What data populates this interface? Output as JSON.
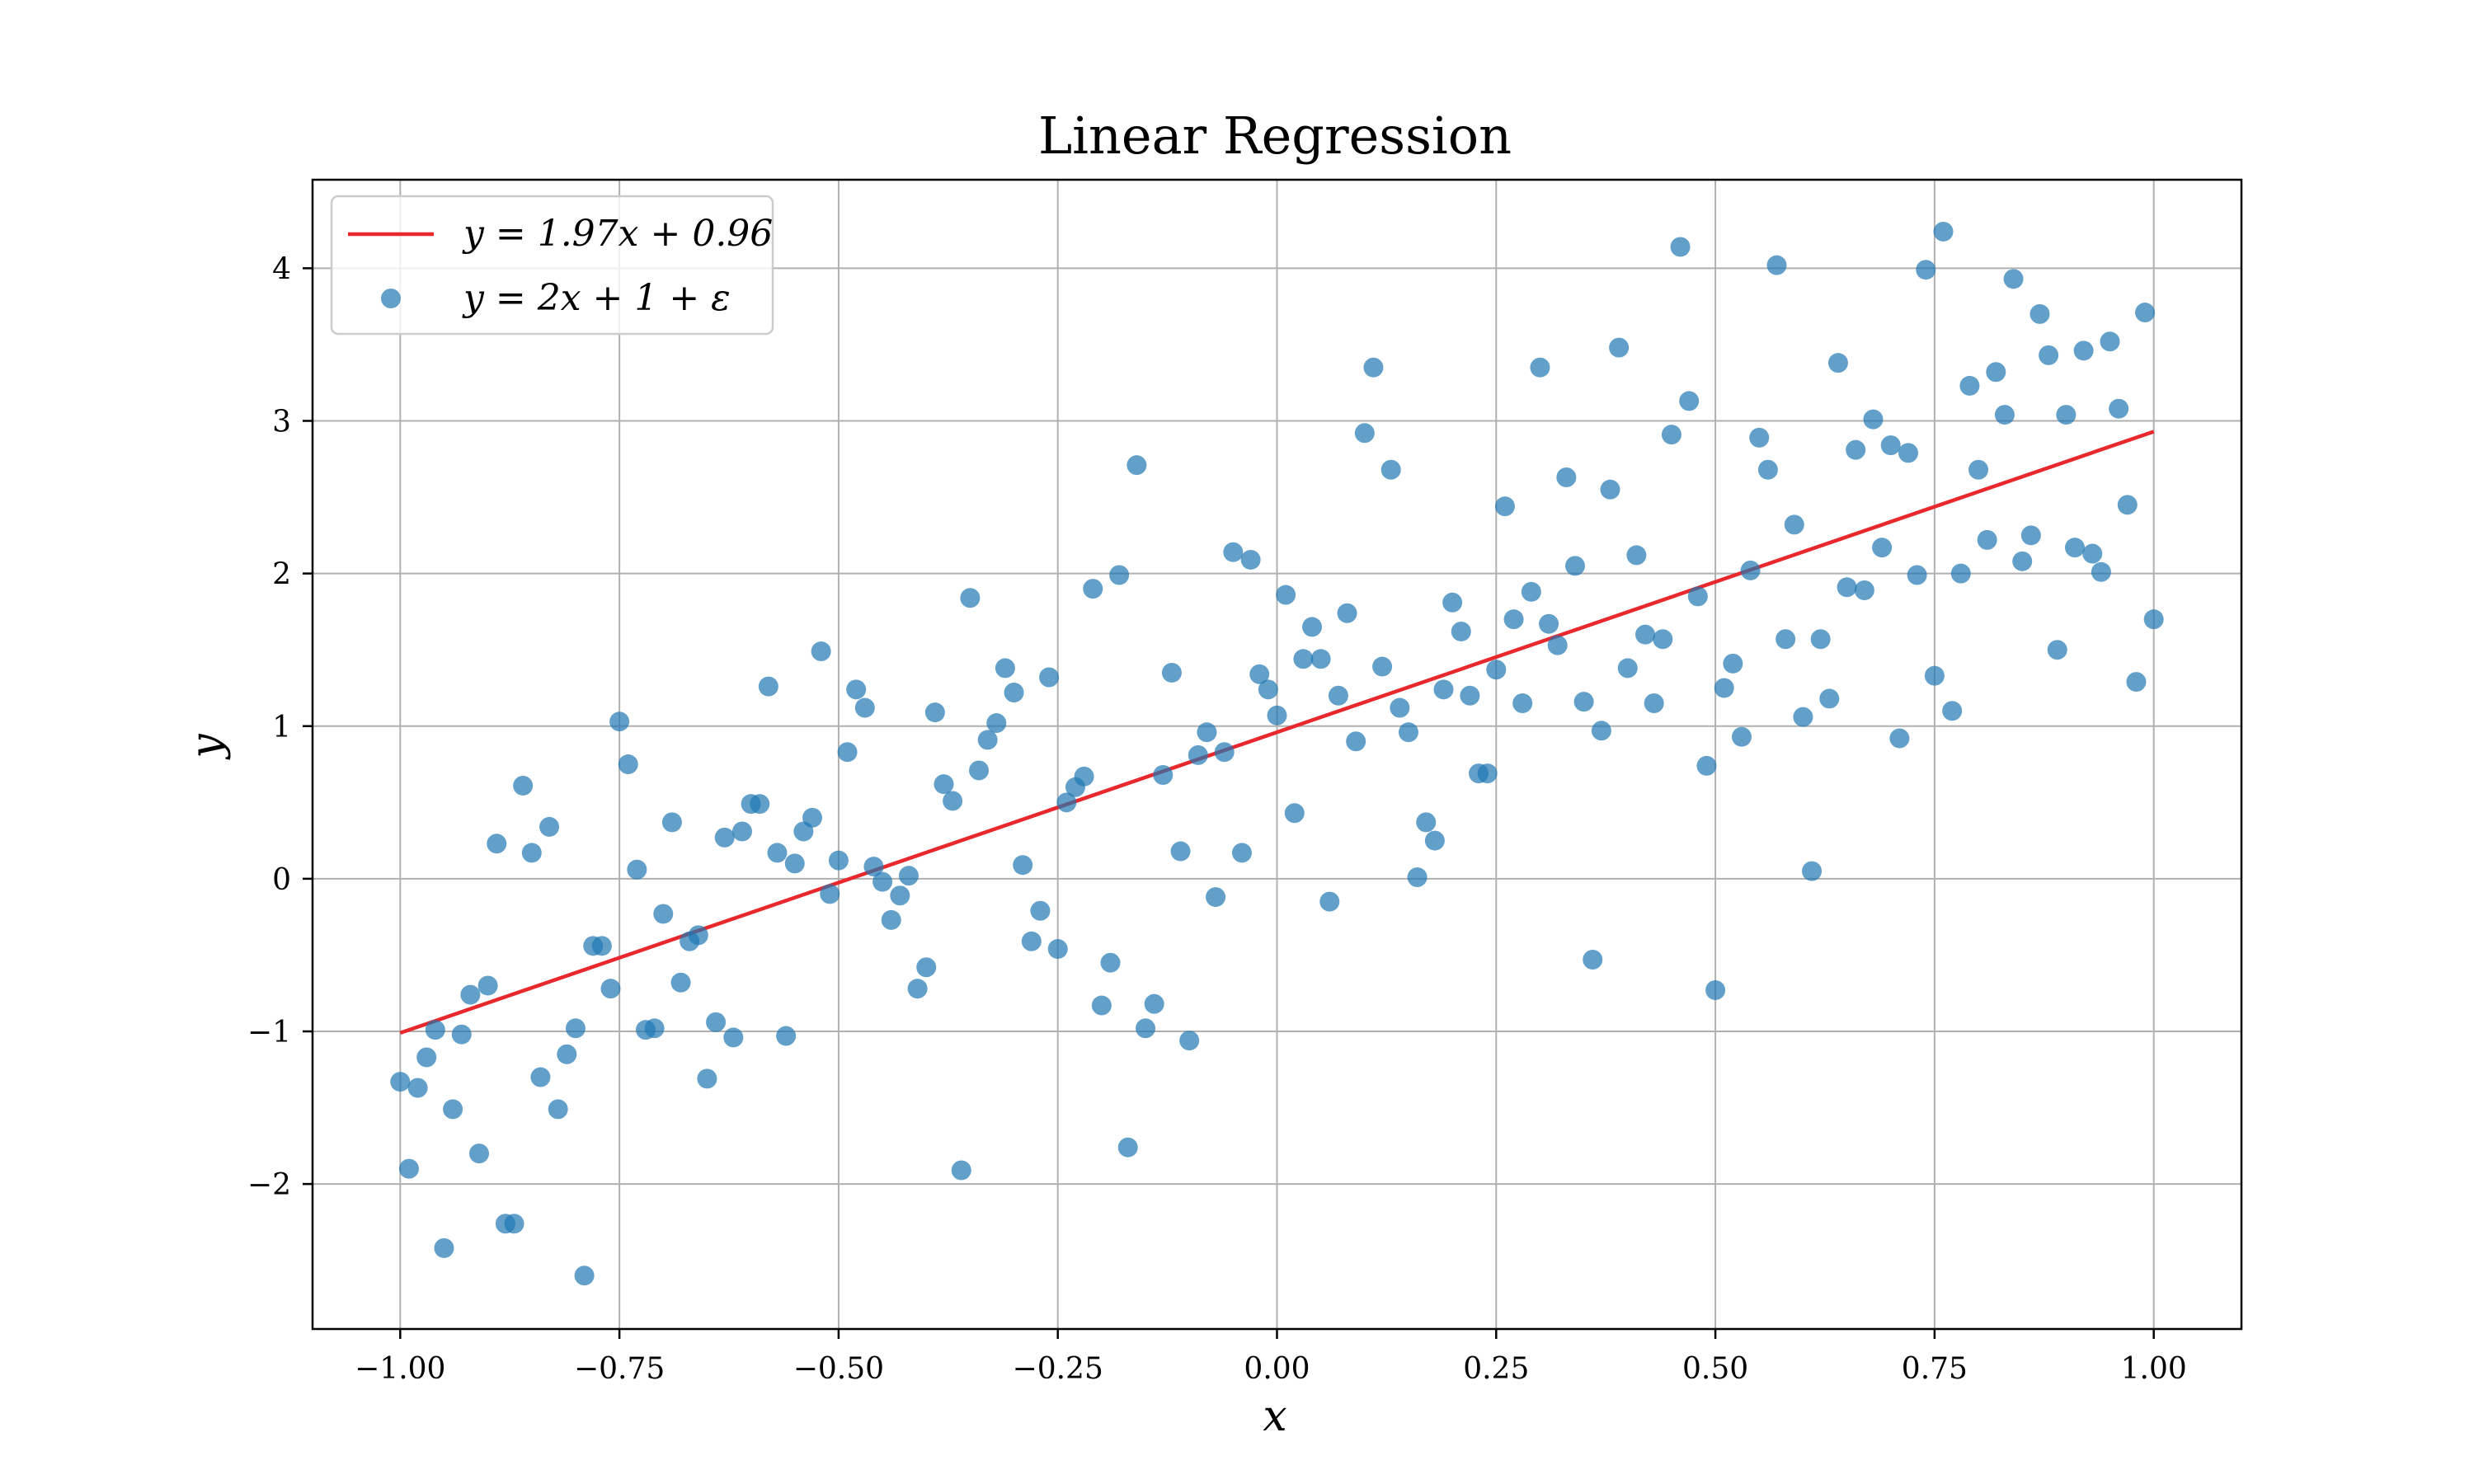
{
  "colors": {
    "point": "#1f77b4",
    "line": "#e8282d",
    "grid": "#b0b0b0",
    "frame": "#000000",
    "background": "#ffffff"
  },
  "chart_data": {
    "type": "scatter",
    "title": "Linear Regression",
    "xlabel": "x",
    "ylabel": "y",
    "xlim": [
      -1.1,
      1.1
    ],
    "ylim": [
      -2.95,
      4.58
    ],
    "grid": true,
    "legend_position": "top-left",
    "x_ticks": [
      -1.0,
      -0.75,
      -0.5,
      -0.25,
      0.0,
      0.25,
      0.5,
      0.75,
      1.0
    ],
    "x_tick_labels": [
      "−1.00",
      "−0.75",
      "−0.50",
      "−0.25",
      "0.00",
      "0.25",
      "0.50",
      "0.75",
      "1.00"
    ],
    "y_ticks": [
      -2,
      -1,
      0,
      1,
      2,
      3,
      4
    ],
    "y_tick_labels": [
      "−2",
      "−1",
      "0",
      "1",
      "2",
      "3",
      "4"
    ],
    "series": [
      {
        "name": "y = 1.97x + 0.96",
        "kind": "line",
        "x": [
          -1.0,
          1.0
        ],
        "y": [
          -1.01,
          2.93
        ]
      },
      {
        "name": "y = 2x + 1 + ε",
        "kind": "scatter",
        "points": [
          [
            -1.0,
            -1.33
          ],
          [
            -0.99,
            -1.9
          ],
          [
            -0.98,
            -1.37
          ],
          [
            -0.97,
            -1.17
          ],
          [
            -0.96,
            -0.99
          ],
          [
            -0.95,
            -2.42
          ],
          [
            -0.94,
            -1.51
          ],
          [
            -0.93,
            -1.02
          ],
          [
            -0.92,
            -0.76
          ],
          [
            -0.91,
            -1.8
          ],
          [
            -0.9,
            -0.7
          ],
          [
            -0.89,
            0.23
          ],
          [
            -0.88,
            -2.26
          ],
          [
            -0.87,
            -2.26
          ],
          [
            -0.86,
            0.61
          ],
          [
            -0.85,
            0.17
          ],
          [
            -0.84,
            -1.3
          ],
          [
            -0.83,
            0.34
          ],
          [
            -0.82,
            -1.51
          ],
          [
            -0.81,
            -1.15
          ],
          [
            -0.8,
            -0.98
          ],
          [
            -0.79,
            -2.6
          ],
          [
            -0.78,
            -0.44
          ],
          [
            -0.77,
            -0.44
          ],
          [
            -0.76,
            -0.72
          ],
          [
            -0.75,
            1.03
          ],
          [
            -0.74,
            0.75
          ],
          [
            -0.73,
            0.06
          ],
          [
            -0.72,
            -0.99
          ],
          [
            -0.71,
            -0.98
          ],
          [
            -0.7,
            -0.23
          ],
          [
            -0.69,
            0.37
          ],
          [
            -0.68,
            -0.68
          ],
          [
            -0.67,
            -0.41
          ],
          [
            -0.66,
            -0.37
          ],
          [
            -0.65,
            -1.31
          ],
          [
            -0.64,
            -0.94
          ],
          [
            -0.63,
            0.27
          ],
          [
            -0.62,
            -1.04
          ],
          [
            -0.61,
            0.31
          ],
          [
            -0.6,
            0.49
          ],
          [
            -0.59,
            0.49
          ],
          [
            -0.58,
            1.26
          ],
          [
            -0.57,
            0.17
          ],
          [
            -0.56,
            -1.03
          ],
          [
            -0.55,
            0.1
          ],
          [
            -0.54,
            0.31
          ],
          [
            -0.53,
            0.4
          ],
          [
            -0.52,
            1.49
          ],
          [
            -0.51,
            -0.1
          ],
          [
            -0.5,
            0.12
          ],
          [
            -0.49,
            0.83
          ],
          [
            -0.48,
            1.24
          ],
          [
            -0.47,
            1.12
          ],
          [
            -0.46,
            0.08
          ],
          [
            -0.45,
            -0.02
          ],
          [
            -0.44,
            -0.27
          ],
          [
            -0.43,
            -0.11
          ],
          [
            -0.42,
            0.02
          ],
          [
            -0.41,
            -0.72
          ],
          [
            -0.4,
            -0.58
          ],
          [
            -0.39,
            1.09
          ],
          [
            -0.38,
            0.62
          ],
          [
            -0.37,
            0.51
          ],
          [
            -0.36,
            -1.91
          ],
          [
            -0.35,
            1.84
          ],
          [
            -0.34,
            0.71
          ],
          [
            -0.33,
            0.91
          ],
          [
            -0.32,
            1.02
          ],
          [
            -0.31,
            1.38
          ],
          [
            -0.3,
            1.22
          ],
          [
            -0.29,
            0.09
          ],
          [
            -0.28,
            -0.41
          ],
          [
            -0.27,
            -0.21
          ],
          [
            -0.26,
            1.32
          ],
          [
            -0.25,
            -0.46
          ],
          [
            -0.24,
            0.5
          ],
          [
            -0.23,
            0.6
          ],
          [
            -0.22,
            0.67
          ],
          [
            -0.21,
            1.9
          ],
          [
            -0.2,
            -0.83
          ],
          [
            -0.19,
            -0.55
          ],
          [
            -0.18,
            1.99
          ],
          [
            -0.17,
            -1.76
          ],
          [
            -0.16,
            2.71
          ],
          [
            -0.15,
            -0.98
          ],
          [
            -0.14,
            -0.82
          ],
          [
            -0.13,
            0.68
          ],
          [
            -0.12,
            1.35
          ],
          [
            -0.11,
            0.18
          ],
          [
            -0.1,
            -1.06
          ],
          [
            -0.09,
            0.81
          ],
          [
            -0.08,
            0.96
          ],
          [
            -0.07,
            -0.12
          ],
          [
            -0.06,
            0.83
          ],
          [
            -0.05,
            2.14
          ],
          [
            -0.04,
            0.17
          ],
          [
            -0.03,
            2.09
          ],
          [
            -0.02,
            1.34
          ],
          [
            -0.01,
            1.24
          ],
          [
            0.0,
            1.07
          ],
          [
            0.01,
            1.86
          ],
          [
            0.02,
            0.43
          ],
          [
            0.03,
            1.44
          ],
          [
            0.04,
            1.65
          ],
          [
            0.05,
            1.44
          ],
          [
            0.06,
            -0.15
          ],
          [
            0.07,
            1.2
          ],
          [
            0.08,
            1.74
          ],
          [
            0.09,
            0.9
          ],
          [
            0.1,
            2.92
          ],
          [
            0.11,
            3.35
          ],
          [
            0.12,
            1.39
          ],
          [
            0.13,
            2.68
          ],
          [
            0.14,
            1.12
          ],
          [
            0.15,
            0.96
          ],
          [
            0.16,
            0.01
          ],
          [
            0.17,
            0.37
          ],
          [
            0.18,
            0.25
          ],
          [
            0.19,
            1.24
          ],
          [
            0.2,
            1.81
          ],
          [
            0.21,
            1.62
          ],
          [
            0.22,
            1.2
          ],
          [
            0.23,
            0.69
          ],
          [
            0.24,
            0.69
          ],
          [
            0.25,
            1.37
          ],
          [
            0.26,
            2.44
          ],
          [
            0.27,
            1.7
          ],
          [
            0.28,
            1.15
          ],
          [
            0.29,
            1.88
          ],
          [
            0.3,
            3.35
          ],
          [
            0.31,
            1.67
          ],
          [
            0.32,
            1.53
          ],
          [
            0.33,
            2.63
          ],
          [
            0.34,
            2.05
          ],
          [
            0.35,
            1.16
          ],
          [
            0.36,
            -0.53
          ],
          [
            0.37,
            0.97
          ],
          [
            0.38,
            2.55
          ],
          [
            0.39,
            3.48
          ],
          [
            0.4,
            1.38
          ],
          [
            0.41,
            2.12
          ],
          [
            0.42,
            1.6
          ],
          [
            0.43,
            1.15
          ],
          [
            0.44,
            1.57
          ],
          [
            0.45,
            2.91
          ],
          [
            0.46,
            4.14
          ],
          [
            0.47,
            3.13
          ],
          [
            0.48,
            1.85
          ],
          [
            0.49,
            0.74
          ],
          [
            0.5,
            -0.73
          ],
          [
            0.51,
            1.25
          ],
          [
            0.52,
            1.41
          ],
          [
            0.53,
            0.93
          ],
          [
            0.54,
            2.02
          ],
          [
            0.55,
            2.89
          ],
          [
            0.56,
            2.68
          ],
          [
            0.57,
            4.02
          ],
          [
            0.58,
            1.57
          ],
          [
            0.59,
            2.32
          ],
          [
            0.6,
            1.06
          ],
          [
            0.61,
            0.05
          ],
          [
            0.62,
            1.57
          ],
          [
            0.63,
            1.18
          ],
          [
            0.64,
            3.38
          ],
          [
            0.65,
            1.91
          ],
          [
            0.66,
            2.81
          ],
          [
            0.67,
            1.89
          ],
          [
            0.68,
            3.01
          ],
          [
            0.69,
            2.17
          ],
          [
            0.7,
            2.84
          ],
          [
            0.71,
            0.92
          ],
          [
            0.72,
            2.79
          ],
          [
            0.73,
            1.99
          ],
          [
            0.74,
            3.99
          ],
          [
            0.75,
            1.33
          ],
          [
            0.76,
            4.24
          ],
          [
            0.77,
            1.1
          ],
          [
            0.78,
            2.0
          ],
          [
            0.79,
            3.23
          ],
          [
            0.8,
            2.68
          ],
          [
            0.81,
            2.22
          ],
          [
            0.82,
            3.32
          ],
          [
            0.83,
            3.04
          ],
          [
            0.84,
            3.93
          ],
          [
            0.85,
            2.08
          ],
          [
            0.86,
            2.25
          ],
          [
            0.87,
            3.7
          ],
          [
            0.88,
            3.43
          ],
          [
            0.89,
            1.5
          ],
          [
            0.9,
            3.04
          ],
          [
            0.91,
            2.17
          ],
          [
            0.92,
            3.46
          ],
          [
            0.93,
            2.13
          ],
          [
            0.94,
            2.01
          ],
          [
            0.95,
            3.52
          ],
          [
            0.96,
            3.08
          ],
          [
            0.97,
            2.45
          ],
          [
            0.98,
            1.29
          ],
          [
            0.99,
            3.71
          ],
          [
            1.0,
            1.7
          ]
        ]
      }
    ]
  }
}
